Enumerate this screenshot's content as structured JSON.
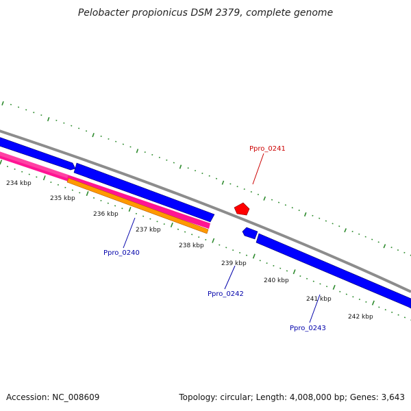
{
  "map": {
    "title": "Pelobacter propionicus DSM 2379, complete genome"
  },
  "colors": {
    "backbone": "#8c8c8c",
    "cds_forward": "#0000ff",
    "cds_reverse": "#0000ff",
    "highlight": "#ff0000",
    "pink_track": "#ff1493",
    "orange_track": "#ff9900",
    "tick": "#2e8b2e"
  },
  "ticks": [
    {
      "label": "234 kbp"
    },
    {
      "label": "235 kbp"
    },
    {
      "label": "236 kbp"
    },
    {
      "label": "237 kbp"
    },
    {
      "label": "238 kbp"
    },
    {
      "label": "239 kbp"
    },
    {
      "label": "240 kbp"
    },
    {
      "label": "241 kbp"
    },
    {
      "label": "242 kbp"
    }
  ],
  "genes": [
    {
      "name": "Ppro_0241",
      "color": "#cc0000"
    },
    {
      "name": "Ppro_0240",
      "color": "#0000aa"
    },
    {
      "name": "Ppro_0242",
      "color": "#0000aa"
    },
    {
      "name": "Ppro_0243",
      "color": "#0000aa"
    }
  ],
  "footer": {
    "accession": "Accession: NC_008609",
    "summary": "Topology: circular; Length: 4,008,000 bp; Genes: 3,643"
  }
}
